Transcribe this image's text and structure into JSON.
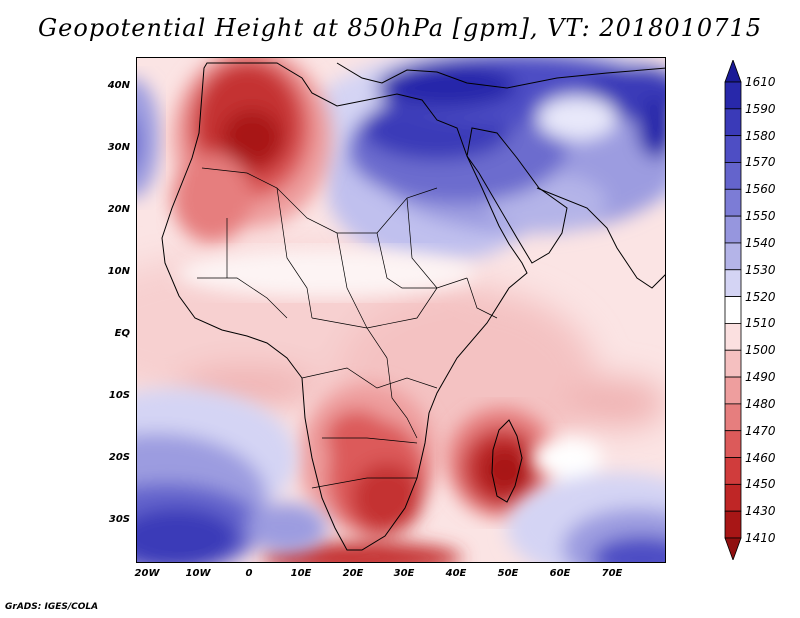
{
  "title": "Geopotential Height at 850hPa [gpm], VT: 2018010715",
  "credit": "GrADS: IGES/COLA",
  "map": {
    "variable": "Geopotential Height at 850hPa",
    "units": "gpm",
    "valid_time": "2018010715",
    "lon_range": [
      -22,
      80
    ],
    "lat_range": [
      -37,
      45
    ],
    "lat_ticks": [
      "40N",
      "30N",
      "20N",
      "10N",
      "EQ",
      "10S",
      "20S",
      "30S"
    ],
    "lon_ticks": [
      "20W",
      "10W",
      "0",
      "10E",
      "20E",
      "30E",
      "40E",
      "50E",
      "60E",
      "70E"
    ],
    "features": [
      {
        "name": "high over Mediterranean and Middle East",
        "level": "1600+"
      },
      {
        "name": "low over Morocco and Algeria",
        "level": "1430-"
      },
      {
        "name": "low over southern Africa",
        "level": "1440-"
      },
      {
        "name": "low over Madagascar",
        "level": "1430-"
      },
      {
        "name": "high over South Atlantic",
        "level": "1580+"
      },
      {
        "name": "high over southern Indian Ocean",
        "level": "1560+"
      }
    ]
  },
  "colorbar": {
    "labels": [
      "1610",
      "1590",
      "1580",
      "1570",
      "1560",
      "1550",
      "1540",
      "1530",
      "1520",
      "1510",
      "1500",
      "1490",
      "1480",
      "1470",
      "1460",
      "1450",
      "1430",
      "1410"
    ],
    "colors": [
      "#1a1a96",
      "#2828aa",
      "#3a3ab8",
      "#4e4ec4",
      "#6464cc",
      "#7c7cd6",
      "#9696de",
      "#b4b4e8",
      "#d4d4f4",
      "#ffffff",
      "#fbe0e0",
      "#f5c0c0",
      "#ee9e9e",
      "#e67e7e",
      "#dc5a5a",
      "#d03c3c",
      "#bf2626",
      "#a81616",
      "#901010"
    ]
  }
}
